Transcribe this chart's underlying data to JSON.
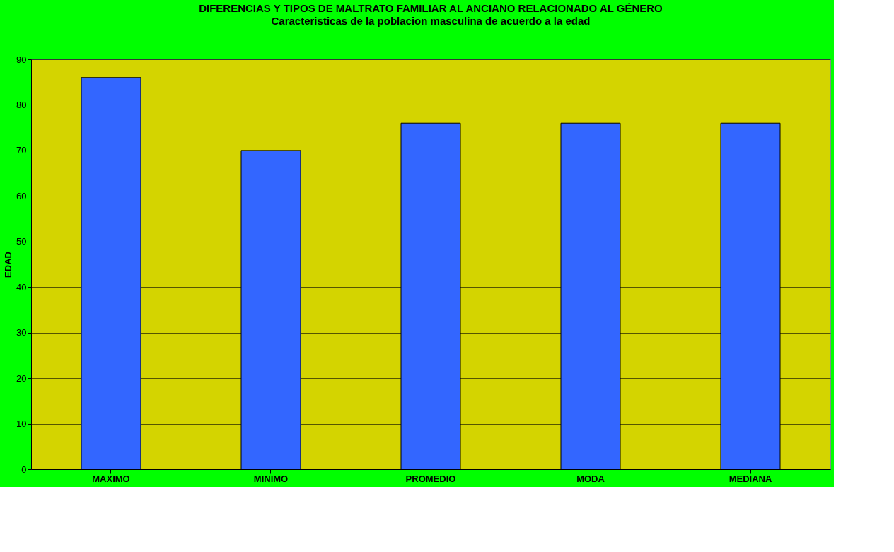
{
  "chart_data": {
    "type": "bar",
    "title": "DIFERENCIAS Y TIPOS DE  MALTRATO FAMILIAR AL ANCIANO RELACIONADO AL GÉNERO",
    "subtitle": "Caracteristicas de la poblacion masculina de acuerdo a la edad",
    "ylabel": "EDAD",
    "categories": [
      "MAXIMO",
      "MINIMO",
      "PROMEDIO",
      "MODA",
      "MEDIANA"
    ],
    "values": [
      86,
      70,
      76,
      76,
      76
    ],
    "color": "#3366ff",
    "ylim": [
      0,
      90
    ],
    "yticks": [
      0,
      10,
      20,
      30,
      40,
      50,
      60,
      70,
      80,
      90
    ],
    "grid": "y"
  }
}
